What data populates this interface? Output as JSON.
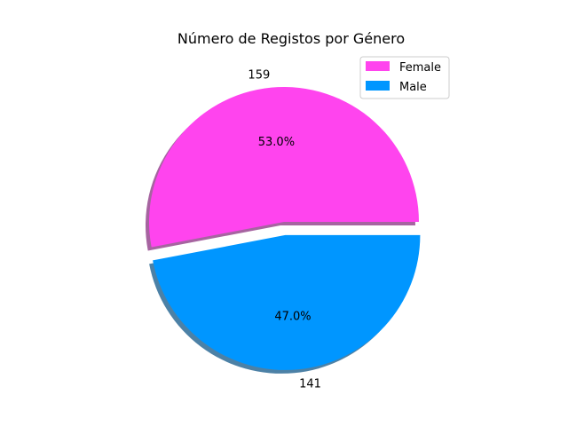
{
  "chart_data": {
    "type": "pie",
    "title": "Número de Registos por Género",
    "slices": [
      {
        "name": "Female",
        "value": 159,
        "label": "159",
        "pct_label": "53.0%",
        "color": "#ff44ee",
        "explode": false
      },
      {
        "name": "Male",
        "value": 141,
        "label": "141",
        "pct_label": "47.0%",
        "color": "#0096ff",
        "explode": true
      }
    ],
    "shadow": true,
    "legend": {
      "placement": "top-right",
      "entries": [
        "Female",
        "Male"
      ]
    }
  }
}
